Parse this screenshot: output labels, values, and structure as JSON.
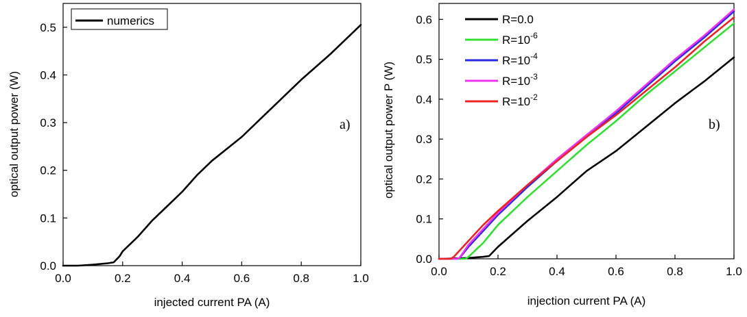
{
  "chart_data": [
    {
      "type": "line",
      "panel_label": "a)",
      "xlabel": "injected current PA (A)",
      "ylabel": "optical output power (W)",
      "xlim": [
        0.0,
        1.0
      ],
      "ylim": [
        0.0,
        0.55
      ],
      "xticks": [
        "0.0",
        "0.2",
        "0.4",
        "0.6",
        "0.8",
        "1.0"
      ],
      "yticks": [
        "0.0",
        "0.1",
        "0.2",
        "0.3",
        "0.4",
        "0.5"
      ],
      "legend_position": "top-left",
      "series": [
        {
          "name": "numerics",
          "color": "#000000",
          "points": [
            [
              0.0,
              0.0
            ],
            [
              0.05,
              0.0
            ],
            [
              0.1,
              0.002
            ],
            [
              0.15,
              0.005
            ],
            [
              0.17,
              0.007
            ],
            [
              0.19,
              0.02
            ],
            [
              0.2,
              0.03
            ],
            [
              0.25,
              0.06
            ],
            [
              0.3,
              0.095
            ],
            [
              0.35,
              0.125
            ],
            [
              0.4,
              0.155
            ],
            [
              0.45,
              0.19
            ],
            [
              0.5,
              0.22
            ],
            [
              0.6,
              0.27
            ],
            [
              0.7,
              0.33
            ],
            [
              0.8,
              0.39
            ],
            [
              0.9,
              0.445
            ],
            [
              1.0,
              0.505
            ]
          ]
        }
      ]
    },
    {
      "type": "line",
      "panel_label": "b)",
      "xlabel": "injection current PA (A)",
      "ylabel": "optical output power P (W)",
      "xlim": [
        0.0,
        1.0
      ],
      "ylim": [
        0.0,
        0.64
      ],
      "xticks": [
        "0.0",
        "0.2",
        "0.4",
        "0.6",
        "0.8",
        "1.0"
      ],
      "yticks": [
        "0.0",
        "0.1",
        "0.2",
        "0.3",
        "0.4",
        "0.5",
        "0.6"
      ],
      "legend_position": "top-left",
      "series": [
        {
          "name": "R=0.0",
          "color": "#000000",
          "points": [
            [
              0.0,
              0.0
            ],
            [
              0.1,
              0.002
            ],
            [
              0.15,
              0.005
            ],
            [
              0.17,
              0.007
            ],
            [
              0.2,
              0.03
            ],
            [
              0.3,
              0.095
            ],
            [
              0.4,
              0.155
            ],
            [
              0.5,
              0.22
            ],
            [
              0.6,
              0.27
            ],
            [
              0.7,
              0.33
            ],
            [
              0.8,
              0.39
            ],
            [
              0.9,
              0.445
            ],
            [
              1.0,
              0.505
            ]
          ]
        },
        {
          "name": "R=10",
          "exponent": "-6",
          "color": "#33dd33",
          "points": [
            [
              0.0,
              0.0
            ],
            [
              0.05,
              0.0
            ],
            [
              0.09,
              0.0
            ],
            [
              0.1,
              0.005
            ],
            [
              0.15,
              0.04
            ],
            [
              0.2,
              0.085
            ],
            [
              0.3,
              0.155
            ],
            [
              0.4,
              0.22
            ],
            [
              0.5,
              0.285
            ],
            [
              0.6,
              0.345
            ],
            [
              0.7,
              0.41
            ],
            [
              0.8,
              0.47
            ],
            [
              0.9,
              0.53
            ],
            [
              1.0,
              0.59
            ]
          ]
        },
        {
          "name": "R=10",
          "exponent": "-4",
          "color": "#2a2ae0",
          "points": [
            [
              0.0,
              0.0
            ],
            [
              0.06,
              0.0
            ],
            [
              0.07,
              0.002
            ],
            [
              0.1,
              0.03
            ],
            [
              0.15,
              0.07
            ],
            [
              0.2,
              0.11
            ],
            [
              0.3,
              0.18
            ],
            [
              0.4,
              0.245
            ],
            [
              0.5,
              0.305
            ],
            [
              0.6,
              0.365
            ],
            [
              0.7,
              0.43
            ],
            [
              0.8,
              0.495
            ],
            [
              0.9,
              0.555
            ],
            [
              1.0,
              0.62
            ]
          ]
        },
        {
          "name": "R=10",
          "exponent": "-3",
          "color": "#ee33ee",
          "points": [
            [
              0.0,
              0.0
            ],
            [
              0.06,
              0.0
            ],
            [
              0.07,
              0.003
            ],
            [
              0.1,
              0.035
            ],
            [
              0.15,
              0.075
            ],
            [
              0.2,
              0.115
            ],
            [
              0.3,
              0.185
            ],
            [
              0.4,
              0.25
            ],
            [
              0.5,
              0.31
            ],
            [
              0.6,
              0.37
            ],
            [
              0.7,
              0.435
            ],
            [
              0.8,
              0.5
            ],
            [
              0.9,
              0.56
            ],
            [
              1.0,
              0.625
            ]
          ]
        },
        {
          "name": "R=10",
          "exponent": "-2",
          "color": "#ee2222",
          "points": [
            [
              0.0,
              0.0
            ],
            [
              0.04,
              0.0
            ],
            [
              0.05,
              0.005
            ],
            [
              0.1,
              0.045
            ],
            [
              0.15,
              0.085
            ],
            [
              0.2,
              0.12
            ],
            [
              0.3,
              0.185
            ],
            [
              0.4,
              0.245
            ],
            [
              0.5,
              0.305
            ],
            [
              0.6,
              0.36
            ],
            [
              0.7,
              0.42
            ],
            [
              0.8,
              0.48
            ],
            [
              0.9,
              0.545
            ],
            [
              1.0,
              0.605
            ]
          ]
        }
      ]
    }
  ]
}
